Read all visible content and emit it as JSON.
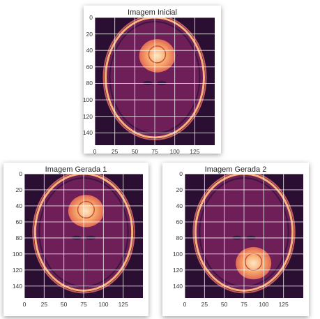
{
  "panels": [
    {
      "title": "Imagem Inicial",
      "yticks": [
        "0",
        "20",
        "40",
        "60",
        "80",
        "100",
        "120",
        "140"
      ],
      "xticks": [
        "0",
        "25",
        "50",
        "75",
        "100",
        "125"
      ],
      "tumor": "upper-center"
    },
    {
      "title": "Imagem Gerada 1",
      "yticks": [
        "0",
        "20",
        "40",
        "60",
        "80",
        "100",
        "120",
        "140"
      ],
      "xticks": [
        "0",
        "25",
        "50",
        "75",
        "100",
        "125"
      ],
      "tumor": "upper-center"
    },
    {
      "title": "Imagem Gerada 2",
      "yticks": [
        "0",
        "20",
        "40",
        "60",
        "80",
        "100",
        "120",
        "140"
      ],
      "xticks": [
        "0",
        "25",
        "50",
        "75",
        "100",
        "125"
      ],
      "tumor": "lower-center"
    }
  ],
  "colors": {
    "background": "#2a0f33",
    "tissue": "#6e1f58",
    "skull": "#f7b27a",
    "tumor": "#f7a86a",
    "grid": "#ffffff"
  }
}
